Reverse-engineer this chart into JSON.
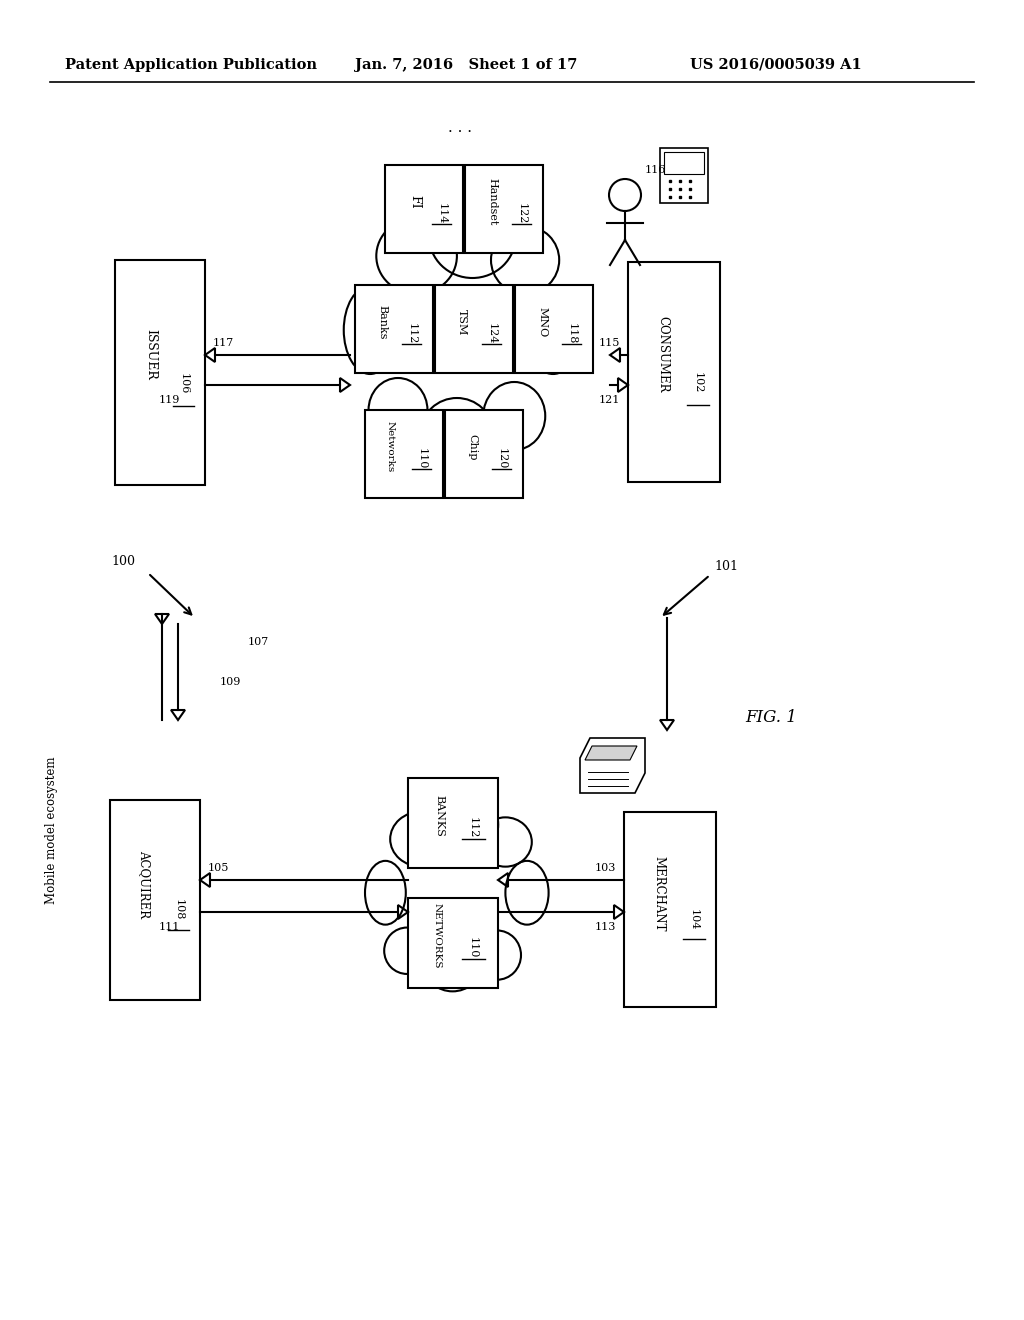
{
  "bg_color": "#ffffff",
  "header_left": "Patent Application Publication",
  "header_mid": "Jan. 7, 2016   Sheet 1 of 17",
  "header_right": "US 2016/0005039 A1",
  "fig_label": "FIG. 1",
  "label_mobile": "Mobile model ecosystem"
}
